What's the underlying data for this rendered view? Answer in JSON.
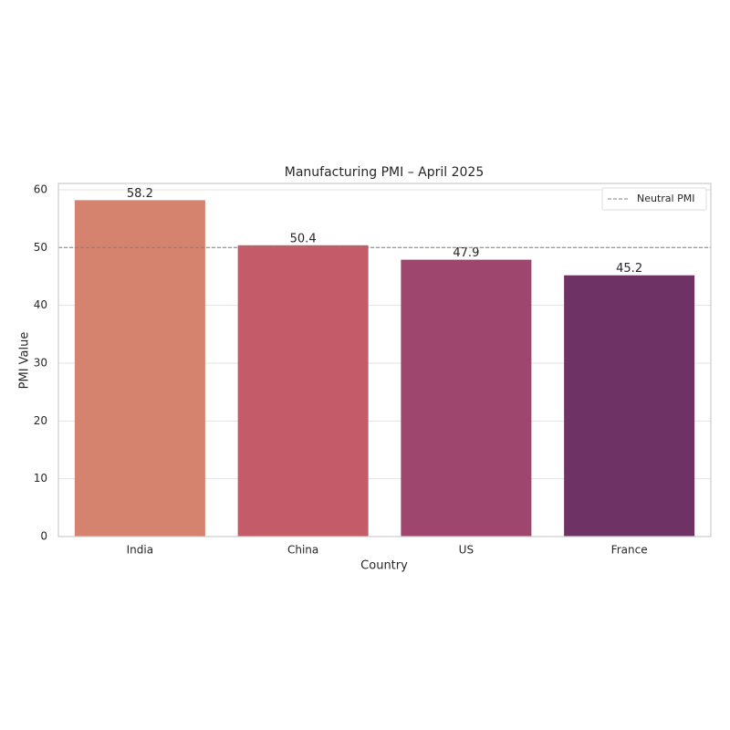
{
  "chart_data": {
    "type": "bar",
    "title": "Manufacturing PMI – April 2025",
    "x_label": "Country",
    "y_label": "PMI Value",
    "categories": [
      "India",
      "China",
      "US",
      "France"
    ],
    "values": [
      58.2,
      50.4,
      47.9,
      45.2
    ],
    "colors": [
      "#d5826f",
      "#c45b69",
      "#9e466d",
      "#6e3364"
    ],
    "ylim": [
      0,
      61.1
    ],
    "yticks": [
      0,
      10,
      20,
      30,
      40,
      50,
      60
    ],
    "grid": true,
    "reference_line": {
      "value": 50,
      "label": "Neutral PMI",
      "color": "#808080"
    },
    "legend_loc": "upper right"
  }
}
